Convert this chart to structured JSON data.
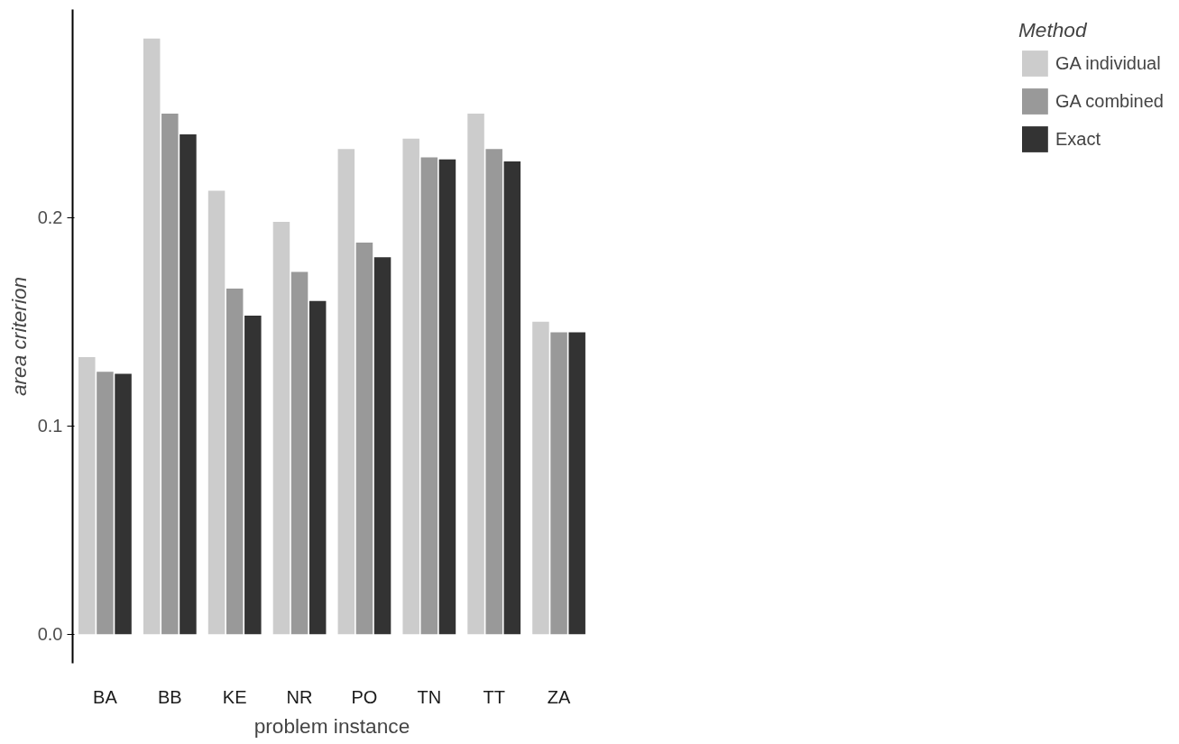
{
  "chart_data": {
    "type": "bar",
    "xlabel": "problem instance",
    "ylabel": "area criterion",
    "legend_title": "Method",
    "categories": [
      "BA",
      "BB",
      "KE",
      "NR",
      "PO",
      "TN",
      "TT",
      "ZA"
    ],
    "series": [
      {
        "name": "GA individual",
        "color": "#cccccc",
        "values": [
          0.133,
          0.286,
          0.213,
          0.198,
          0.233,
          0.238,
          0.25,
          0.15
        ]
      },
      {
        "name": "GA combined",
        "color": "#999999",
        "values": [
          0.126,
          0.25,
          0.166,
          0.174,
          0.188,
          0.229,
          0.233,
          0.145
        ]
      },
      {
        "name": "Exact",
        "color": "#333333",
        "values": [
          0.125,
          0.24,
          0.153,
          0.16,
          0.181,
          0.228,
          0.227,
          0.145
        ]
      }
    ],
    "ylim": [
      -0.014,
      0.3
    ],
    "yticks": [
      {
        "value": 0,
        "label": "0.0"
      },
      0.1,
      0.2
    ],
    "grid": false,
    "legend": "right"
  }
}
